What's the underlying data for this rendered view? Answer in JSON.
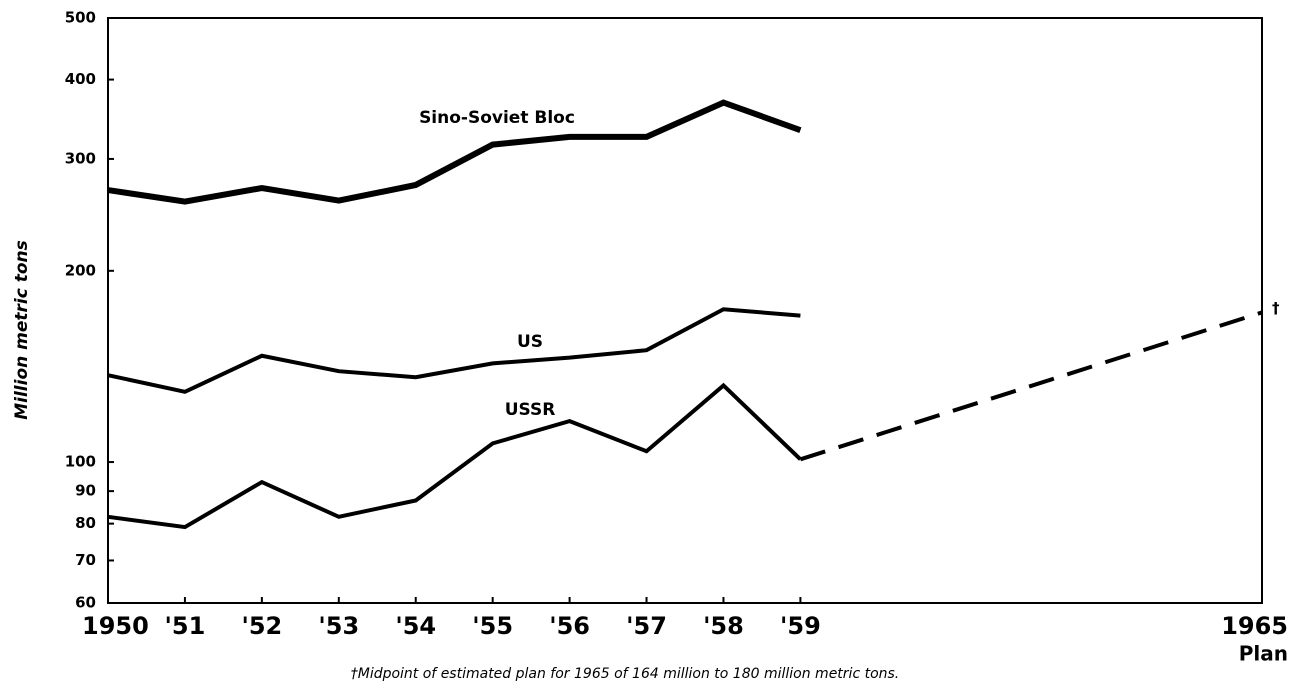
{
  "chart_data": {
    "type": "line",
    "y_label": "Million metric tons",
    "footnote": "†Midpoint of estimated plan for 1965 of 164 million to 180 million metric tons.",
    "plan_marker": "†",
    "x_tick_note": "Plan",
    "log_y": true,
    "x": [
      1950,
      1951,
      1952,
      1953,
      1954,
      1955,
      1956,
      1957,
      1958,
      1959,
      1965
    ],
    "xlim": [
      1950,
      1965
    ],
    "xticks": [
      {
        "value": 1950,
        "label": "1950"
      },
      {
        "value": 1951,
        "label": "'51"
      },
      {
        "value": 1952,
        "label": "'52"
      },
      {
        "value": 1953,
        "label": "'53"
      },
      {
        "value": 1954,
        "label": "'54"
      },
      {
        "value": 1955,
        "label": "'55"
      },
      {
        "value": 1956,
        "label": "'56"
      },
      {
        "value": 1957,
        "label": "'57"
      },
      {
        "value": 1958,
        "label": "'58"
      },
      {
        "value": 1959,
        "label": "'59"
      },
      {
        "value": 1965,
        "label": "1965"
      }
    ],
    "ylim": [
      60,
      500
    ],
    "yticks": [
      60,
      70,
      80,
      90,
      100,
      200,
      300,
      400,
      500
    ],
    "series": [
      {
        "name": "Sino-Soviet Bloc",
        "color": "#000000",
        "width": 6,
        "values": [
          268,
          257,
          270,
          258,
          273,
          316,
          325,
          325,
          368,
          333,
          null
        ]
      },
      {
        "name": "US",
        "color": "#000000",
        "width": 4,
        "values": [
          137,
          129,
          147,
          139,
          136,
          143,
          146,
          150,
          174,
          170,
          null
        ]
      },
      {
        "name": "USSR",
        "color": "#000000",
        "width": 4,
        "values": [
          82,
          79,
          93,
          82,
          87,
          107,
          116,
          104,
          132,
          101,
          172
        ],
        "projected": [
          false,
          false,
          false,
          false,
          false,
          false,
          false,
          false,
          false,
          false,
          true
        ]
      }
    ]
  }
}
